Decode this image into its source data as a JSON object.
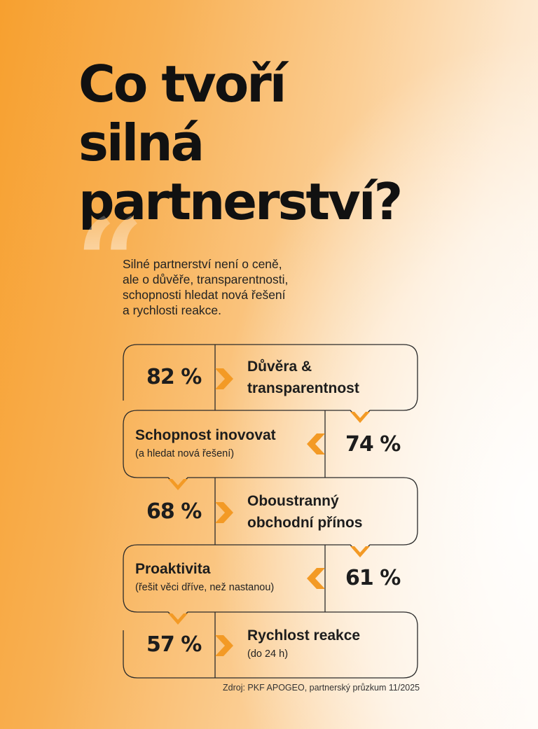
{
  "title": {
    "line1": "Co tvoří",
    "line2": "silná",
    "line3": "partnerství?"
  },
  "quote": {
    "line1": "Silné partnerství není o ceně,",
    "line2": "ale o důvěře, transparentnosti,",
    "line3": "schopnosti hledat nová řešení",
    "line4": "a rychlosti reakce."
  },
  "items": [
    {
      "percent": "82 %",
      "label1": "Důvěra &",
      "label2": "transparentnost"
    },
    {
      "percent": "74 %",
      "label1": "Schopnost inovovat",
      "sub": "(a hledat nová řešení)"
    },
    {
      "percent": "68 %",
      "label1": "Oboustranný",
      "label2": "obchodní přínos"
    },
    {
      "percent": "61 %",
      "label1": "Proaktivita",
      "sub": "(řešit věci dříve, než nastanou)"
    },
    {
      "percent": "57 %",
      "label1": "Rychlost reakce",
      "sub": "(do 24 h)"
    }
  ],
  "source": "Zdroj: PKF APOGEO, partnerský průzkum 11/2025",
  "colors": {
    "accent": "#f39a25",
    "line": "#2b2b2b",
    "text": "#1d1d1d"
  }
}
